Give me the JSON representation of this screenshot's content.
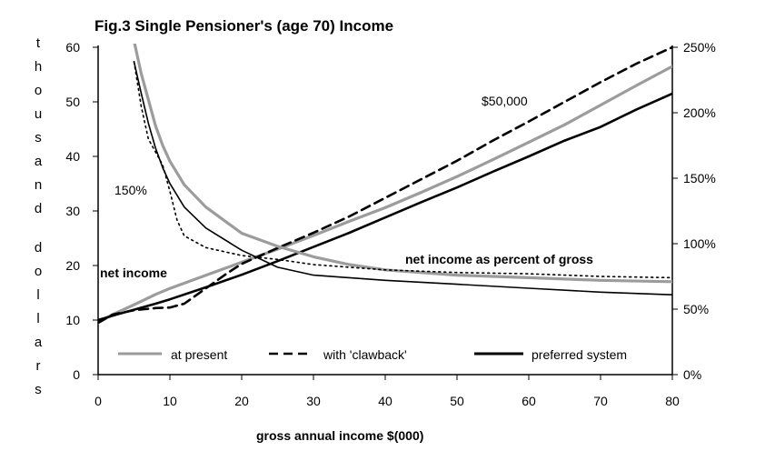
{
  "chart_data": {
    "type": "line",
    "title": "Fig.3   Single Pensioner's (age 70) Income",
    "xlabel": "gross annual income   $(000)",
    "ylabel": "thousand dollars",
    "xlim": [
      0,
      80
    ],
    "ylim": [
      0,
      60
    ],
    "y2lim": [
      0,
      250
    ],
    "x_ticks": [
      "0",
      "10",
      "20",
      "30",
      "40",
      "50",
      "60",
      "70",
      "80"
    ],
    "y_ticks": [
      "0",
      "10",
      "20",
      "30",
      "40",
      "50",
      "60"
    ],
    "y2_ticks": [
      "0%",
      "50%",
      "100%",
      "150%",
      "200%",
      "250%"
    ],
    "grid": false,
    "legend_position": "bottom",
    "legend": [
      {
        "name": "at present",
        "style": "grey"
      },
      {
        "name": "with 'clawback'",
        "style": "dashed"
      },
      {
        "name": "preferred system",
        "style": "solid"
      }
    ],
    "annotations": {
      "net_income": "net income",
      "net_percent": "net income as percent of gross",
      "pct150": "150%",
      "k50": "$50,000"
    },
    "series": [
      {
        "name": "at present",
        "axis": "left",
        "x": [
          0,
          2,
          5,
          8,
          10,
          15,
          20,
          25,
          30,
          35,
          40,
          45,
          50,
          55,
          60,
          65,
          70,
          75,
          80
        ],
        "y": [
          9.5,
          11,
          12.8,
          14.7,
          15.8,
          18.2,
          20.6,
          23,
          25.5,
          28.1,
          30.6,
          33.4,
          36.3,
          39.4,
          42.6,
          45.8,
          49.4,
          53,
          56.5
        ]
      },
      {
        "name": "with 'clawback'",
        "axis": "left",
        "x": [
          0,
          2,
          5,
          8,
          10,
          12,
          15,
          18,
          20,
          25,
          30,
          35,
          40,
          45,
          50,
          55,
          60,
          65,
          70,
          75,
          80
        ],
        "y": [
          9.5,
          11,
          11.8,
          12.2,
          12.3,
          13,
          15.8,
          18.6,
          20.3,
          23.2,
          26,
          29,
          32.4,
          35.8,
          39.2,
          42.9,
          46.4,
          50,
          53.6,
          57,
          60
        ]
      },
      {
        "name": "preferred system",
        "axis": "left",
        "x": [
          0,
          2,
          5,
          8,
          10,
          15,
          20,
          25,
          30,
          35,
          40,
          45,
          50,
          55,
          60,
          65,
          70,
          75,
          80
        ],
        "y": [
          10,
          10.8,
          11.9,
          13,
          13.8,
          16,
          18.3,
          20.8,
          23.4,
          26,
          28.8,
          31.6,
          34.3,
          37.2,
          40,
          42.9,
          45.4,
          48.6,
          51.5
        ]
      },
      {
        "name": "at present (% of gross)",
        "axis": "right",
        "x": [
          5,
          6,
          7,
          8,
          9,
          10,
          12,
          15,
          20,
          25,
          30,
          35,
          40,
          50,
          60,
          70,
          80
        ],
        "y": [
          255,
          230,
          210,
          190,
          175,
          163,
          145,
          128,
          108,
          98,
          90,
          84,
          80,
          76,
          74,
          72,
          71
        ]
      },
      {
        "name": "with 'clawback' (% of gross)",
        "axis": "right",
        "x": [
          5,
          6,
          7,
          8,
          9,
          10,
          11,
          12,
          15,
          20,
          25,
          30,
          40,
          50,
          60,
          70,
          80
        ],
        "y": [
          239,
          205,
          180,
          170,
          160,
          140,
          118,
          106,
          97,
          91,
          88,
          84,
          80,
          78,
          77,
          75,
          74
        ]
      },
      {
        "name": "preferred system (% of gross)",
        "axis": "right",
        "x": [
          5,
          6,
          7,
          8,
          9,
          10,
          12,
          15,
          20,
          25,
          30,
          40,
          50,
          60,
          70,
          80
        ],
        "y": [
          239,
          215,
          192,
          173,
          158,
          146,
          128,
          112,
          95,
          82,
          76,
          72,
          69,
          66,
          63,
          61
        ]
      }
    ]
  }
}
